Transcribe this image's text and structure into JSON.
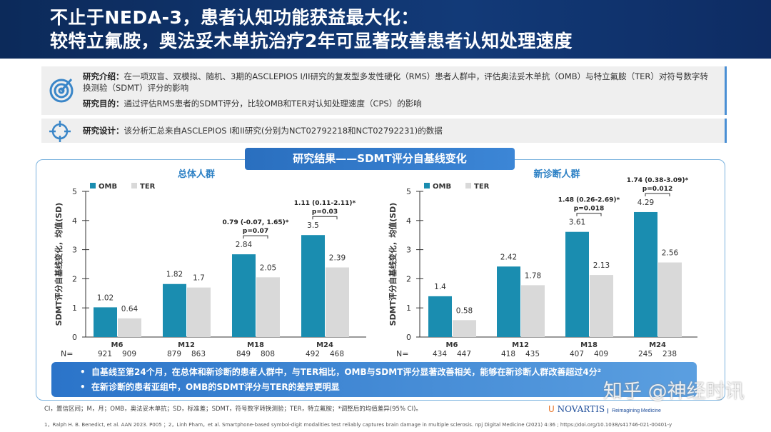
{
  "header": {
    "line1": "不止于NEDA-3，患者认知功能获益最大化：",
    "line2": "较特立氟胺，奥法妥木单抗治疗2年可显著改善患者认知处理速度"
  },
  "intro": {
    "label": "研究介绍：",
    "text": "在一项双盲、双模拟、随机、3期的ASCLEPIOS I/II研究的复发型多发性硬化（RMS）患者人群中，评估奥法妥木单抗（OMB）与特立氟胺（TER）对符号数字转换测验（SDMT）评分的影响"
  },
  "aim": {
    "label": "研究目的：",
    "text": "通过评估RMS患者的SDMT评分，比较OMB和TER对认知处理速度（CPS）的影响"
  },
  "design": {
    "label": "研究设计：",
    "text": "该分析汇总来自ASCLEPIOS I和II研究(分别为NCT02792218和NCT02792231)的数据"
  },
  "results_title": "研究结果——SDMT评分自基线变化",
  "chart_data": [
    {
      "type": "bar",
      "title": "总体人群",
      "ylabel": "SDMT评分自基线变化，均值(SD)",
      "ylim": [
        0,
        5
      ],
      "yticks": [
        0,
        1,
        2,
        3,
        4,
        5
      ],
      "categories": [
        "M6",
        "M12",
        "M18",
        "M24"
      ],
      "series": [
        {
          "name": "OMB",
          "color": "#1a8db0",
          "values": [
            1.02,
            1.82,
            2.84,
            3.5
          ]
        },
        {
          "name": "TER",
          "color": "#d9d9d9",
          "values": [
            0.64,
            1.7,
            2.05,
            2.39
          ]
        }
      ],
      "n_label": "N=",
      "n": [
        [
          "921",
          "909"
        ],
        [
          "879",
          "863"
        ],
        [
          "849",
          "808"
        ],
        [
          "492",
          "468"
        ]
      ],
      "annotations": [
        {
          "category": "M18",
          "diff": "0.79 (-0.07, 1.65)*",
          "p": "p=0.07"
        },
        {
          "category": "M24",
          "diff": "1.11 (0.11-2.11)*",
          "p": "p=0.03"
        }
      ]
    },
    {
      "type": "bar",
      "title": "新诊断人群",
      "ylabel": "SDMT评分自基线变化，均值(SD)",
      "ylim": [
        0,
        5
      ],
      "yticks": [
        0,
        1,
        2,
        3,
        4,
        5
      ],
      "categories": [
        "M6",
        "M12",
        "M18",
        "M24"
      ],
      "series": [
        {
          "name": "OMB",
          "color": "#1a8db0",
          "values": [
            1.4,
            2.42,
            3.61,
            4.29
          ]
        },
        {
          "name": "TER",
          "color": "#d9d9d9",
          "values": [
            0.58,
            1.78,
            2.13,
            2.56
          ]
        }
      ],
      "n_label": "N=",
      "n": [
        [
          "434",
          "447"
        ],
        [
          "418",
          "435"
        ],
        [
          "407",
          "409"
        ],
        [
          "245",
          "238"
        ]
      ],
      "annotations": [
        {
          "category": "M18",
          "diff": "1.48 (0.26-2.69)*",
          "p": "p=0.018"
        },
        {
          "category": "M24",
          "diff": "1.74 (0.38-3.09)*",
          "p": "p=0.012"
        }
      ]
    }
  ],
  "conclusions": [
    "自基线至第24个月，在总体和新诊断的患者人群中，与TER相比，OMB与SDMT评分显著改善相关，能够在新诊断人群改善超过4分²",
    "在新诊断的患者亚组中，OMB的SDMT评分与TER的差异更明显"
  ],
  "footnote": "CI，置信区间；M，月；OMB，奥法妥木单抗；SD，标准差；SDMT，符号数字转换测验；TER，特立氟胺；*调整后的均值差异(95% CI)。",
  "references": "1，Ralph H. B. Benedict, et al. AAN 2023. P005 ；2，Linh Pham，et al. Smartphone-based symbol-digit modalities test reliably captures brain damage in multiple sclerosis. npj Digital Medicine (2021) 4:36 ; https://doi.org/10.1038/s41746-021-00401-y",
  "logo": {
    "brand": "NOVARTIS",
    "tagline": "Reimagining Medicine"
  },
  "watermark": "知乎 @神经时讯"
}
